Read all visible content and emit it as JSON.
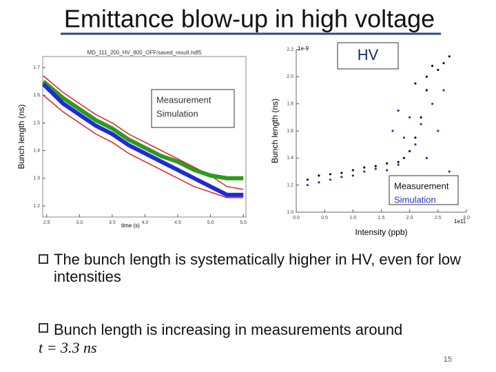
{
  "slide": {
    "title": "Emittance blow-up in high voltage",
    "bullets": [
      "The bunch length is systematically higher in HV, even for low intensities",
      "Bunch length is increasing in measurements around"
    ],
    "math": "t = 3.3 ns",
    "page_number": "15"
  },
  "chart_data": [
    {
      "type": "line",
      "title": "MD_111_200_HV_800_OFF/saved_result.hdf5",
      "x_label": "time (s)",
      "y_label": "Bunch length (ns)",
      "x": [
        2.45,
        2.75,
        3.0,
        3.25,
        3.5,
        3.75,
        4.0,
        4.25,
        4.5,
        4.75,
        5.0,
        5.25,
        5.5
      ],
      "series": [
        {
          "name": "Measurement",
          "color": "#1f2bd6",
          "values": [
            1.64,
            1.57,
            1.53,
            1.49,
            1.46,
            1.42,
            1.39,
            1.36,
            1.33,
            1.3,
            1.27,
            1.24,
            1.24
          ]
        },
        {
          "name": "Simulation",
          "color": "#2e9a1e",
          "values": [
            1.65,
            1.59,
            1.55,
            1.51,
            1.48,
            1.44,
            1.41,
            1.38,
            1.36,
            1.33,
            1.31,
            1.3,
            1.3
          ]
        },
        {
          "color": "#e02020",
          "values": [
            1.67,
            1.61,
            1.57,
            1.53,
            1.5,
            1.46,
            1.43,
            1.4,
            1.37,
            1.34,
            1.31,
            1.27,
            1.26
          ]
        },
        {
          "color": "#e02020",
          "values": [
            1.6,
            1.54,
            1.5,
            1.46,
            1.43,
            1.39,
            1.36,
            1.33,
            1.3,
            1.27,
            1.25,
            1.23,
            1.23
          ]
        }
      ],
      "xlim": [
        2.44,
        5.54
      ],
      "ylim": [
        1.16,
        1.74
      ],
      "xticks": [
        2.5,
        {
          "value": 3,
          "label": "3.0"
        },
        3.5,
        {
          "value": 4,
          "label": "4.0"
        },
        4.5,
        {
          "value": 5,
          "label": "5.0"
        },
        5.5
      ],
      "yticks": [
        1.2,
        1.3,
        1.4,
        1.5,
        1.6,
        1.7
      ]
    },
    {
      "type": "scatter",
      "annotation": "HV",
      "x_label": "Intensity (ppb)",
      "y_label": "Bunch length (ns)",
      "y_offset": "1e-9",
      "x_offset": "1e11",
      "series": [
        {
          "name": "Measurement",
          "color": "#111111",
          "x": [
            0.2,
            0.4,
            0.6,
            0.8,
            1.0,
            1.2,
            1.4,
            1.6,
            1.8,
            1.9,
            2.0,
            2.1,
            2.2,
            2.3,
            2.1,
            2.3,
            2.5,
            2.6,
            2.4,
            2.7
          ],
          "values": [
            1.24,
            1.27,
            1.28,
            1.29,
            1.31,
            1.33,
            1.34,
            1.36,
            1.37,
            1.4,
            1.45,
            1.55,
            1.7,
            1.9,
            1.95,
            2.0,
            2.05,
            2.1,
            2.08,
            2.15
          ]
        },
        {
          "name": "Simulation",
          "color": "#2233bb",
          "x": [
            0.2,
            0.4,
            0.6,
            0.8,
            1.0,
            1.2,
            1.4,
            1.6,
            1.8,
            1.9,
            2.0,
            2.1,
            2.2,
            2.3,
            2.4,
            2.5,
            2.6,
            2.7,
            1.7,
            1.8
          ],
          "values": [
            1.2,
            1.22,
            1.24,
            1.26,
            1.27,
            1.3,
            1.32,
            1.31,
            1.35,
            1.55,
            1.7,
            1.5,
            1.65,
            1.4,
            1.8,
            1.6,
            1.9,
            1.3,
            1.6,
            1.75
          ]
        }
      ],
      "xlim": [
        0,
        3
      ],
      "ylim": [
        1,
        2.2
      ],
      "xticks": [
        {
          "value": 0,
          "label": "0.0"
        },
        0.5,
        {
          "value": 1,
          "label": "1.0"
        },
        1.5,
        {
          "value": 2,
          "label": "2.0"
        },
        2.5,
        {
          "value": 3,
          "label": "3.0"
        }
      ],
      "yticks": [
        {
          "value": 1,
          "label": "1.0"
        },
        1.2,
        1.4,
        1.6,
        1.8,
        {
          "value": 2,
          "label": "2.0"
        },
        2.2
      ]
    }
  ]
}
